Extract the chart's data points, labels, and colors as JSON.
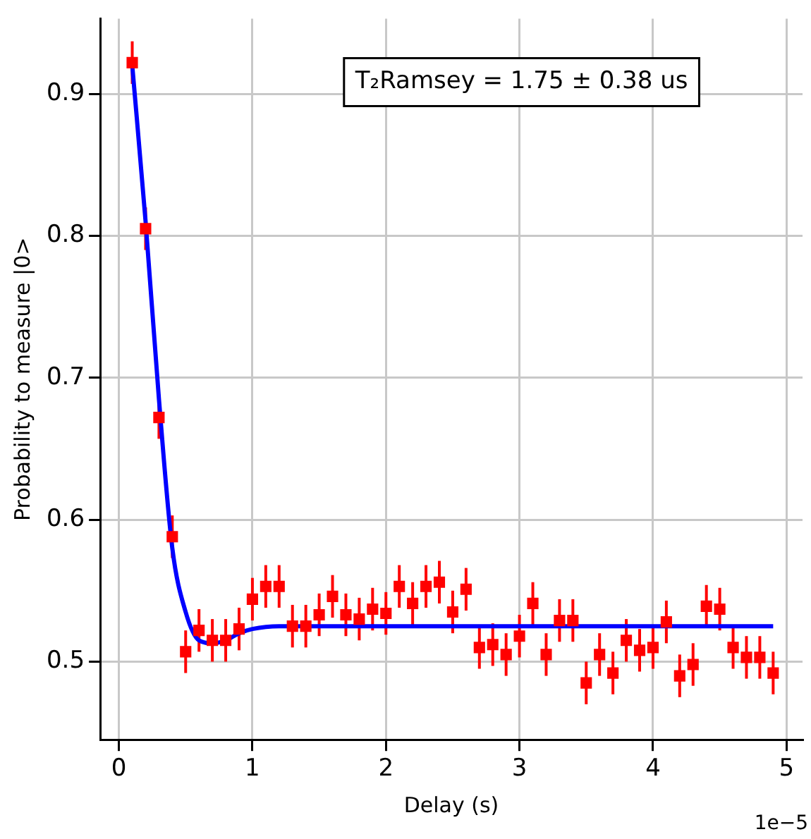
{
  "chart_data": {
    "type": "scatter",
    "xlabel": "Delay (s)",
    "ylabel": "Probability to measure |0>",
    "annotations": [
      "T₂Ramsey = 1.75 ± 0.38 us",
      "1e−5"
    ],
    "xlim": [
      -0.14,
      5.12
    ],
    "xticks": [
      0,
      1,
      2,
      3,
      4,
      5
    ],
    "ylim": [
      0.445,
      0.953
    ],
    "yticks": [
      0.5,
      0.6,
      0.7,
      0.8,
      0.9
    ],
    "grid": true,
    "legend": false,
    "marker": "square",
    "series": [
      {
        "color": "#ff0000",
        "x": [
          0.1,
          0.2,
          0.3,
          0.4,
          0.5,
          0.6,
          0.7,
          0.8,
          0.9,
          1.0,
          1.1,
          1.2,
          1.3,
          1.4,
          1.5,
          1.6,
          1.7,
          1.8,
          1.9,
          2.0,
          2.1,
          2.2,
          2.3,
          2.4,
          2.5,
          2.6,
          2.7,
          2.8,
          2.9,
          3.0,
          3.1,
          3.2,
          3.3,
          3.4,
          3.5,
          3.6,
          3.7,
          3.8,
          3.9,
          4.0,
          4.1,
          4.2,
          4.3,
          4.4,
          4.5,
          4.6,
          4.7,
          4.8,
          4.9
        ],
        "values": [
          0.922,
          0.805,
          0.672,
          0.588,
          0.507,
          0.522,
          0.515,
          0.515,
          0.523,
          0.544,
          0.553,
          0.553,
          0.525,
          0.525,
          0.533,
          0.546,
          0.533,
          0.53,
          0.537,
          0.534,
          0.553,
          0.541,
          0.553,
          0.556,
          0.535,
          0.551,
          0.51,
          0.512,
          0.505,
          0.518,
          0.541,
          0.505,
          0.529,
          0.529,
          0.485,
          0.505,
          0.492,
          0.515,
          0.508,
          0.51,
          0.528,
          0.49,
          0.498,
          0.539,
          0.537,
          0.51,
          0.503,
          0.503,
          0.492
        ],
        "errors": [
          0.015,
          0.015,
          0.015,
          0.015,
          0.015,
          0.015,
          0.015,
          0.015,
          0.015,
          0.015,
          0.015,
          0.015,
          0.015,
          0.015,
          0.015,
          0.015,
          0.015,
          0.015,
          0.015,
          0.015,
          0.015,
          0.015,
          0.015,
          0.015,
          0.015,
          0.015,
          0.015,
          0.015,
          0.015,
          0.015,
          0.015,
          0.015,
          0.015,
          0.015,
          0.015,
          0.015,
          0.015,
          0.015,
          0.015,
          0.015,
          0.015,
          0.015,
          0.015,
          0.015,
          0.015,
          0.015,
          0.015,
          0.015,
          0.015
        ]
      },
      {
        "type": "line",
        "color": "#0000ff",
        "marker": "none",
        "line_style": "solid",
        "x": [
          0.1,
          0.2,
          0.3,
          0.4,
          0.5,
          0.6,
          0.7,
          0.8,
          0.9,
          1.0,
          1.2,
          1.5,
          2.0,
          3.0,
          4.0,
          4.9
        ],
        "values": [
          0.92,
          0.81,
          0.685,
          0.58,
          0.535,
          0.515,
          0.513,
          0.515,
          0.52,
          0.523,
          0.525,
          0.525,
          0.525,
          0.525,
          0.525,
          0.525
        ]
      }
    ]
  }
}
